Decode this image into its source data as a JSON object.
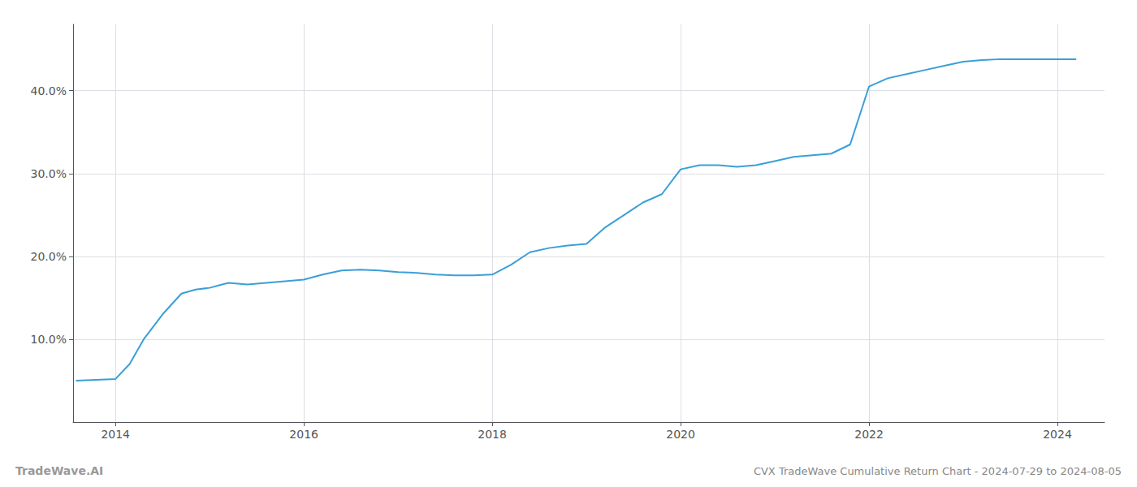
{
  "chart_data": {
    "type": "line",
    "title": "CVX TradeWave Cumulative Return Chart - 2024-07-29 to 2024-08-05",
    "annotations": [
      "TradeWave.AI"
    ],
    "color": "#3a9fd8",
    "grid": true,
    "x": [
      2013.58,
      2014.0,
      2014.15,
      2014.3,
      2014.5,
      2014.7,
      2014.85,
      2015.0,
      2015.1,
      2015.2,
      2015.4,
      2015.6,
      2015.8,
      2016.0,
      2016.2,
      2016.4,
      2016.6,
      2016.8,
      2017.0,
      2017.2,
      2017.4,
      2017.6,
      2017.8,
      2018.0,
      2018.2,
      2018.4,
      2018.6,
      2018.8,
      2019.0,
      2019.2,
      2019.4,
      2019.6,
      2019.8,
      2020.0,
      2020.2,
      2020.4,
      2020.6,
      2020.8,
      2021.0,
      2021.2,
      2021.4,
      2021.6,
      2021.8,
      2022.0,
      2022.2,
      2022.4,
      2022.6,
      2022.8,
      2023.0,
      2023.2,
      2023.4,
      2023.6,
      2023.8,
      2024.0,
      2024.2
    ],
    "values": [
      5.0,
      5.2,
      7.0,
      10.0,
      13.0,
      15.5,
      16.0,
      16.2,
      16.5,
      16.8,
      16.6,
      16.8,
      17.0,
      17.2,
      17.8,
      18.3,
      18.4,
      18.3,
      18.1,
      18.0,
      17.8,
      17.7,
      17.7,
      17.8,
      19.0,
      20.5,
      21.0,
      21.3,
      21.5,
      23.5,
      25.0,
      26.5,
      27.5,
      30.5,
      31.0,
      31.0,
      30.8,
      31.0,
      31.5,
      32.0,
      32.2,
      32.4,
      33.5,
      40.5,
      41.5,
      42.0,
      42.5,
      43.0,
      43.5,
      43.7,
      43.8,
      43.8,
      43.8,
      43.8,
      43.8
    ],
    "xlim": [
      2013.55,
      2024.5
    ],
    "xticks": [
      2014,
      2016,
      2018,
      2020,
      2022,
      2024
    ],
    "ylim": [
      0,
      48
    ],
    "yticks": [
      {
        "value": 10.0,
        "label": "10.0%"
      },
      {
        "value": 20.0,
        "label": "20.0%"
      },
      {
        "value": 30.0,
        "label": "30.0%"
      },
      {
        "value": 40.0,
        "label": "40.0%"
      }
    ]
  }
}
